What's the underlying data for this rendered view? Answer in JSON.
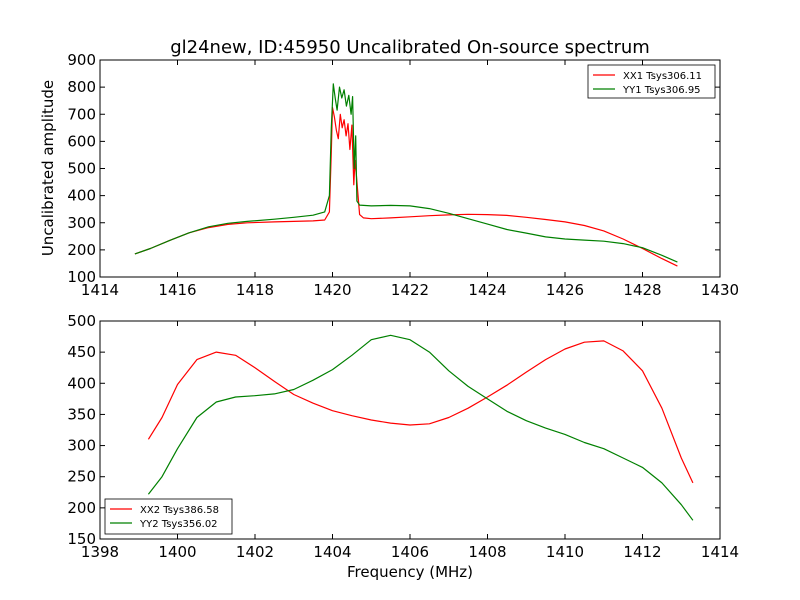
{
  "chart_data": [
    {
      "type": "line",
      "title": "gl24new, ID:45950 Uncalibrated On-source spectrum",
      "xlabel": "",
      "ylabel": "Uncalibrated amplitude",
      "xlim": [
        1414,
        1430
      ],
      "ylim": [
        100,
        900
      ],
      "xticks": [
        1414,
        1416,
        1418,
        1420,
        1422,
        1424,
        1426,
        1428,
        1430
      ],
      "yticks": [
        100,
        200,
        300,
        400,
        500,
        600,
        700,
        800,
        900
      ],
      "legend_position": "top-right",
      "series": [
        {
          "name": "XX1 Tsys306.11",
          "color": "#ff0000",
          "points": [
            [
              1414.9,
              185
            ],
            [
              1415.3,
              205
            ],
            [
              1415.8,
              235
            ],
            [
              1416.3,
              263
            ],
            [
              1416.8,
              282
            ],
            [
              1417.3,
              294
            ],
            [
              1417.8,
              300
            ],
            [
              1418.5,
              303
            ],
            [
              1419.0,
              305
            ],
            [
              1419.5,
              307
            ],
            [
              1419.8,
              310
            ],
            [
              1419.92,
              340
            ],
            [
              1419.97,
              560
            ],
            [
              1420.0,
              725
            ],
            [
              1420.05,
              690
            ],
            [
              1420.1,
              640
            ],
            [
              1420.15,
              610
            ],
            [
              1420.2,
              700
            ],
            [
              1420.25,
              650
            ],
            [
              1420.3,
              680
            ],
            [
              1420.35,
              620
            ],
            [
              1420.4,
              665
            ],
            [
              1420.45,
              570
            ],
            [
              1420.5,
              660
            ],
            [
              1420.55,
              440
            ],
            [
              1420.58,
              530
            ],
            [
              1420.62,
              470
            ],
            [
              1420.7,
              330
            ],
            [
              1420.8,
              318
            ],
            [
              1421.0,
              315
            ],
            [
              1421.5,
              318
            ],
            [
              1422.0,
              322
            ],
            [
              1422.5,
              326
            ],
            [
              1423.0,
              329
            ],
            [
              1423.5,
              331
            ],
            [
              1424.0,
              330
            ],
            [
              1424.5,
              327
            ],
            [
              1425.0,
              320
            ],
            [
              1425.5,
              312
            ],
            [
              1426.0,
              303
            ],
            [
              1426.5,
              290
            ],
            [
              1427.0,
              270
            ],
            [
              1427.5,
              240
            ],
            [
              1428.0,
              205
            ],
            [
              1428.5,
              168
            ],
            [
              1428.9,
              140
            ]
          ]
        },
        {
          "name": "YY1 Tsys306.95",
          "color": "#008000",
          "points": [
            [
              1414.9,
              185
            ],
            [
              1415.3,
              205
            ],
            [
              1415.8,
              235
            ],
            [
              1416.3,
              263
            ],
            [
              1416.8,
              285
            ],
            [
              1417.3,
              298
            ],
            [
              1417.8,
              305
            ],
            [
              1418.5,
              313
            ],
            [
              1419.0,
              320
            ],
            [
              1419.5,
              328
            ],
            [
              1419.8,
              340
            ],
            [
              1419.92,
              400
            ],
            [
              1419.97,
              650
            ],
            [
              1420.02,
              812
            ],
            [
              1420.07,
              760
            ],
            [
              1420.12,
              715
            ],
            [
              1420.18,
              800
            ],
            [
              1420.24,
              760
            ],
            [
              1420.3,
              790
            ],
            [
              1420.36,
              730
            ],
            [
              1420.42,
              770
            ],
            [
              1420.48,
              700
            ],
            [
              1420.52,
              765
            ],
            [
              1420.56,
              500
            ],
            [
              1420.6,
              620
            ],
            [
              1420.63,
              380
            ],
            [
              1420.7,
              365
            ],
            [
              1421.0,
              362
            ],
            [
              1421.5,
              364
            ],
            [
              1422.0,
              362
            ],
            [
              1422.5,
              352
            ],
            [
              1423.0,
              335
            ],
            [
              1423.5,
              315
            ],
            [
              1424.0,
              295
            ],
            [
              1424.5,
              275
            ],
            [
              1425.0,
              262
            ],
            [
              1425.5,
              248
            ],
            [
              1426.0,
              240
            ],
            [
              1426.5,
              236
            ],
            [
              1427.0,
              232
            ],
            [
              1427.5,
              223
            ],
            [
              1428.0,
              208
            ],
            [
              1428.5,
              180
            ],
            [
              1428.9,
              155
            ]
          ]
        }
      ]
    },
    {
      "type": "line",
      "title": "",
      "xlabel": "Frequency (MHz)",
      "ylabel": "",
      "xlim": [
        1398,
        1414
      ],
      "ylim": [
        150,
        500
      ],
      "xticks": [
        1398,
        1400,
        1402,
        1404,
        1406,
        1408,
        1410,
        1412,
        1414
      ],
      "yticks": [
        150,
        200,
        250,
        300,
        350,
        400,
        450,
        500
      ],
      "legend_position": "bottom-left",
      "series": [
        {
          "name": "XX2 Tsys386.58",
          "color": "#ff0000",
          "points": [
            [
              1399.25,
              310
            ],
            [
              1399.6,
              345
            ],
            [
              1400.0,
              398
            ],
            [
              1400.5,
              438
            ],
            [
              1401.0,
              450
            ],
            [
              1401.5,
              445
            ],
            [
              1402.0,
              425
            ],
            [
              1402.5,
              403
            ],
            [
              1403.0,
              382
            ],
            [
              1403.5,
              368
            ],
            [
              1404.0,
              356
            ],
            [
              1404.5,
              348
            ],
            [
              1405.0,
              341
            ],
            [
              1405.5,
              336
            ],
            [
              1406.0,
              333
            ],
            [
              1406.5,
              335
            ],
            [
              1407.0,
              345
            ],
            [
              1407.5,
              360
            ],
            [
              1408.0,
              378
            ],
            [
              1408.5,
              397
            ],
            [
              1409.0,
              418
            ],
            [
              1409.5,
              438
            ],
            [
              1410.0,
              455
            ],
            [
              1410.5,
              466
            ],
            [
              1411.0,
              468
            ],
            [
              1411.5,
              452
            ],
            [
              1412.0,
              420
            ],
            [
              1412.5,
              360
            ],
            [
              1413.0,
              280
            ],
            [
              1413.3,
              240
            ]
          ]
        },
        {
          "name": "YY2 Tsys356.02",
          "color": "#008000",
          "points": [
            [
              1399.25,
              222
            ],
            [
              1399.6,
              250
            ],
            [
              1400.0,
              295
            ],
            [
              1400.5,
              345
            ],
            [
              1401.0,
              370
            ],
            [
              1401.5,
              378
            ],
            [
              1402.0,
              380
            ],
            [
              1402.5,
              383
            ],
            [
              1403.0,
              390
            ],
            [
              1403.5,
              405
            ],
            [
              1404.0,
              422
            ],
            [
              1404.5,
              445
            ],
            [
              1405.0,
              470
            ],
            [
              1405.5,
              477
            ],
            [
              1406.0,
              470
            ],
            [
              1406.5,
              450
            ],
            [
              1407.0,
              420
            ],
            [
              1407.5,
              395
            ],
            [
              1408.0,
              375
            ],
            [
              1408.5,
              355
            ],
            [
              1409.0,
              340
            ],
            [
              1409.5,
              328
            ],
            [
              1410.0,
              318
            ],
            [
              1410.5,
              305
            ],
            [
              1411.0,
              295
            ],
            [
              1411.5,
              280
            ],
            [
              1412.0,
              265
            ],
            [
              1412.5,
              240
            ],
            [
              1413.0,
              205
            ],
            [
              1413.3,
              180
            ]
          ]
        }
      ]
    }
  ]
}
